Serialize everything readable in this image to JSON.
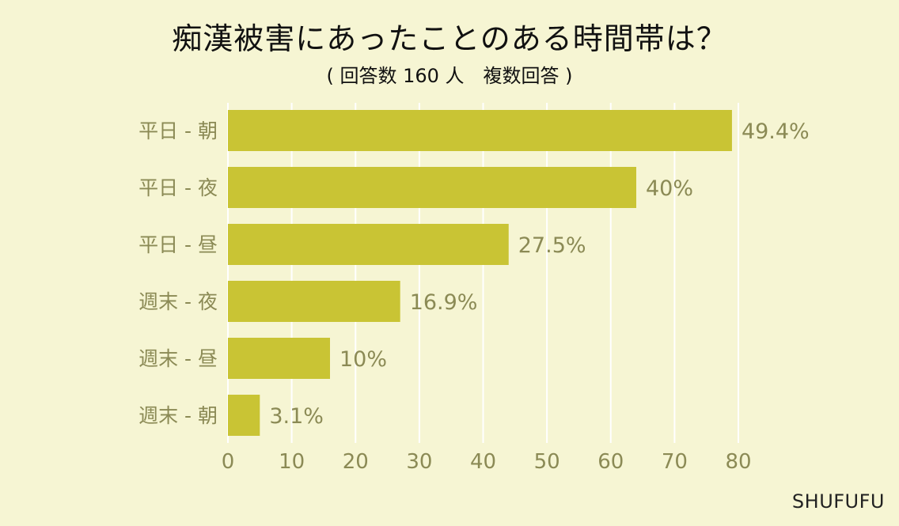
{
  "chart_data": {
    "type": "bar",
    "orientation": "horizontal",
    "title": "痴漢被害にあったことのある時間帯は？",
    "subtitle": "( 回答数 160 人　複数回答 )",
    "categories": [
      "平日 - 朝",
      "平日 - 夜",
      "平日 - 昼",
      "週末 - 夜",
      "週末 - 昼",
      "週末 - 朝"
    ],
    "values": [
      79,
      64,
      44,
      27,
      16,
      5
    ],
    "data_labels": [
      "49.4%",
      "40%",
      "27.5%",
      "16.9%",
      "10%",
      "3.1%"
    ],
    "xlim": [
      0,
      80
    ],
    "xticks": [
      0,
      10,
      20,
      30,
      40,
      50,
      60,
      70,
      80
    ],
    "grid": "vertical",
    "xlabel": "",
    "ylabel": ""
  },
  "colors": {
    "background": "#f6f5d3",
    "bar": "#c9c434",
    "grid": "#ffffff",
    "label_text": "#8b8a55",
    "tick_text": "#8b8a55",
    "title_text": "#111111"
  },
  "brand": "SHUFUFU"
}
